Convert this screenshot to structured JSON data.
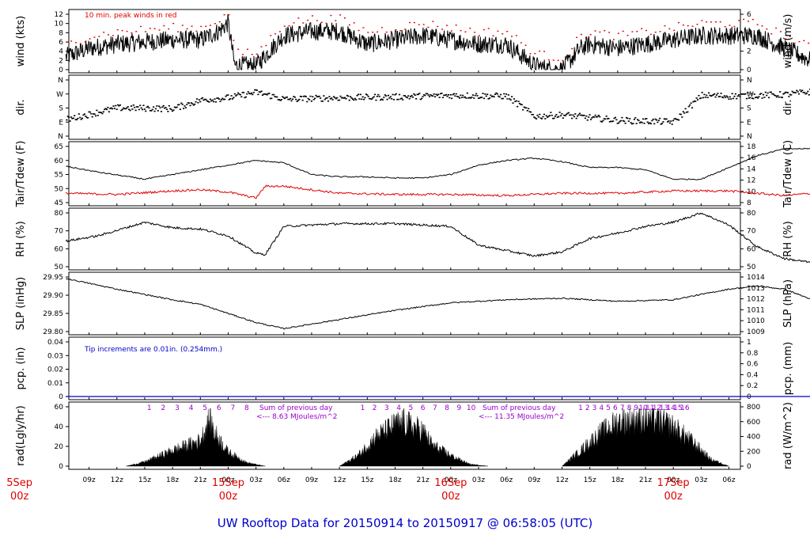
{
  "title": "UW Rooftop Data for 20150914  to  20150917 @ 06:58:05  (UTC)",
  "time_ticks": [
    "09z",
    "12z",
    "15z",
    "18z",
    "21z",
    "00z",
    "03z",
    "06z",
    "09z",
    "12z",
    "15z",
    "18z",
    "21z",
    "00z",
    "03z",
    "06z",
    "09z",
    "12z",
    "15z",
    "18z",
    "21z",
    "00z",
    "03z",
    "06z"
  ],
  "day_labels": [
    {
      "date": "5Sep",
      "hour": "00z",
      "tick": -2.5
    },
    {
      "date": "15Sep",
      "hour": "00z",
      "tick": 5
    },
    {
      "date": "16Sep",
      "hour": "00z",
      "tick": 13
    },
    {
      "date": "17Sep",
      "hour": "00z",
      "tick": 21
    }
  ],
  "panels": {
    "wind": {
      "ylabel_left": "wind (kts)",
      "ylabel_right": "wind (m/s)",
      "left_ticks": [
        "0",
        "2",
        "4",
        "6",
        "8",
        "10",
        "12"
      ],
      "right_ticks": [
        "0",
        "2",
        "4",
        "6"
      ],
      "note": "10 min. peak winds in red",
      "line_color": "#000000",
      "peak_color": "#e00000"
    },
    "dir": {
      "ylabel_left": "dir.",
      "ylabel_right": "dir.",
      "left_ticks": [
        "N",
        "E",
        "S",
        "W",
        "N"
      ],
      "right_ticks": [
        "N",
        "E",
        "S",
        "W",
        "N"
      ]
    },
    "temp": {
      "ylabel_left": "Tair/Tdew (F)",
      "ylabel_right": "Tair/Tdew (C)",
      "left_ticks": [
        "45",
        "50",
        "55",
        "60",
        "65"
      ],
      "right_ticks": [
        "8",
        "10",
        "12",
        "14",
        "16",
        "18"
      ],
      "tair_color": "#000000",
      "tdew_color": "#e00000"
    },
    "rh": {
      "ylabel_left": "RH (%)",
      "ylabel_right": "RH (%)",
      "left_ticks": [
        "50",
        "60",
        "70",
        "80"
      ],
      "right_ticks": [
        "50",
        "60",
        "70",
        "80"
      ]
    },
    "slp": {
      "ylabel_left": "SLP (inHg)",
      "ylabel_right": "SLP (hPa)",
      "left_ticks": [
        "29.80",
        "29.85",
        "29.90",
        "29.95"
      ],
      "right_ticks": [
        "1009",
        "1010",
        "1011",
        "1012",
        "1013",
        "1014"
      ]
    },
    "pcp": {
      "ylabel_left": "pcp. (in)",
      "ylabel_right": "pcp. (mm)",
      "left_ticks": [
        "0",
        "0.01",
        "0.02",
        "0.03",
        "0.04"
      ],
      "right_ticks": [
        "0",
        "0.2",
        "0.4",
        "0.6",
        "0.8",
        "1"
      ],
      "note": "Tip increments are 0.01in. (0.254mm.)",
      "line_color": "#0000cc"
    },
    "rad": {
      "ylabel_left": "rad(Lgly/hr)",
      "ylabel_right": "rad (W/m^2)",
      "left_ticks": [
        "0",
        "20",
        "40",
        "60"
      ],
      "right_ticks": [
        "0",
        "200",
        "400",
        "600",
        "800"
      ],
      "sum_day1_a": "Sum of previous day",
      "sum_day1_b": "<--- 8.63 MJoules/m^2",
      "sum_day2_a": "Sum of previous day",
      "sum_day2_b": "<--- 11.35 MJoules/m^2",
      "hour_marks_1": [
        "1",
        "2",
        "3",
        "4",
        "5",
        "6",
        "7",
        "8"
      ],
      "hour_marks_2": [
        "1",
        "2",
        "3",
        "4",
        "5",
        "6",
        "7",
        "8",
        "9",
        "10"
      ],
      "hour_marks_3": [
        "1",
        "2",
        "3",
        "4",
        "5",
        "6",
        "7",
        "8",
        "9",
        "10",
        "11",
        "12",
        "13",
        "14",
        "15",
        "16"
      ]
    }
  },
  "chart_data": [
    {
      "type": "line",
      "ylabel": "wind (kts)",
      "ylim": [
        0,
        13
      ],
      "x": [
        6.5,
        9,
        12,
        15,
        18,
        21,
        23,
        24,
        24.7,
        27,
        30,
        33,
        36,
        38,
        39,
        42,
        45,
        48,
        51,
        54,
        57,
        59,
        60,
        62,
        63,
        66,
        69,
        72,
        75,
        78,
        81,
        84,
        87,
        90,
        93,
        94.5
      ],
      "values": [
        3,
        5,
        6,
        6.5,
        7,
        7,
        9,
        11,
        1,
        1,
        8,
        9,
        9,
        7,
        6,
        7,
        8,
        7,
        6,
        6,
        1,
        0,
        0,
        5,
        6,
        5,
        6,
        7,
        8,
        8,
        8,
        5,
        2,
        1,
        5,
        2.5
      ]
    },
    {
      "type": "line",
      "ylabel": "dir. (deg)",
      "ylim": [
        0,
        360
      ],
      "x": [
        6.5,
        12,
        18,
        21,
        24,
        27,
        30,
        36,
        42,
        48,
        54,
        57,
        60,
        66,
        72,
        75,
        78,
        84,
        87,
        90,
        92,
        94.5
      ],
      "values": [
        110,
        185,
        180,
        235,
        250,
        285,
        240,
        250,
        255,
        265,
        260,
        130,
        140,
        105,
        95,
        265,
        260,
        270,
        290,
        40,
        240,
        290
      ]
    },
    {
      "type": "line",
      "ylabel": "Tair (F)",
      "ylim": [
        43,
        67
      ],
      "x": [
        6.5,
        10,
        15,
        18,
        21,
        24,
        27,
        30,
        33,
        36,
        39,
        42,
        45,
        48,
        51,
        54,
        57,
        60,
        63,
        66,
        69,
        72,
        75,
        78,
        81,
        84,
        87,
        90,
        93,
        94.5
      ],
      "values": [
        58.5,
        56,
        53,
        55,
        57,
        59,
        61,
        60,
        55,
        54,
        54,
        53.5,
        53.5,
        55,
        59,
        61,
        62,
        60.5,
        58,
        58,
        57,
        53,
        53,
        58,
        63,
        66,
        66,
        65,
        60,
        58
      ]
    },
    {
      "type": "line",
      "ylabel": "Tdew (F)",
      "ylim": [
        43,
        67
      ],
      "x": [
        6.5,
        12,
        18,
        21,
        24,
        27,
        28,
        30,
        36,
        42,
        48,
        54,
        60,
        66,
        72,
        75,
        78,
        81,
        84,
        87,
        90,
        93,
        94.5
      ],
      "values": [
        47,
        46.5,
        48,
        48.5,
        47.5,
        45,
        50,
        50,
        47,
        46.5,
        46.5,
        46,
        47,
        47,
        48,
        48,
        48,
        47,
        46,
        47,
        48,
        52,
        54
      ]
    },
    {
      "type": "line",
      "ylabel": "RH (%)",
      "ylim": [
        47,
        87
      ],
      "x": [
        6.5,
        10,
        15,
        18,
        21,
        24,
        27,
        28,
        30,
        36,
        42,
        48,
        51,
        54,
        57,
        60,
        63,
        66,
        69,
        72,
        75,
        78,
        81,
        84,
        87,
        90,
        92,
        94.5
      ],
      "values": [
        66,
        70,
        80,
        76,
        75,
        70,
        57,
        56,
        77,
        79,
        79,
        77,
        63,
        59,
        55,
        58,
        68,
        72,
        77,
        80,
        87,
        78,
        62,
        53,
        50,
        49,
        55,
        86
      ]
    },
    {
      "type": "line",
      "ylabel": "SLP (inHg)",
      "ylim": [
        29.78,
        29.96
      ],
      "x": [
        6.5,
        12,
        18,
        21,
        24,
        27,
        30,
        36,
        42,
        48,
        54,
        60,
        66,
        72,
        78,
        81,
        84,
        87,
        90,
        93,
        94.5
      ],
      "values": [
        29.955,
        29.92,
        29.885,
        29.87,
        29.84,
        29.81,
        29.79,
        29.82,
        29.85,
        29.875,
        29.885,
        29.89,
        29.88,
        29.885,
        29.92,
        29.93,
        29.92,
        29.885,
        29.88,
        29.89,
        29.9
      ]
    },
    {
      "type": "line",
      "ylabel": "pcp. (in)",
      "ylim": [
        0,
        0.04
      ],
      "x": [
        6.5,
        92.5,
        93,
        93.3,
        93.6,
        94,
        94.5
      ],
      "values": [
        0,
        0,
        0.01,
        0.02,
        0.03,
        0.04,
        0.04
      ]
    },
    {
      "type": "area",
      "ylabel": "rad(Lgly/hr)",
      "ylim": [
        0,
        72
      ],
      "x": [
        13,
        15,
        18,
        21,
        22,
        22.5,
        24,
        26,
        28,
        36,
        38,
        40,
        42,
        43,
        44,
        45,
        46,
        48,
        50,
        52,
        60,
        62,
        64,
        66,
        68,
        70,
        72,
        74,
        76,
        78
      ],
      "values": [
        0,
        6,
        22,
        36,
        66,
        48,
        20,
        5,
        0,
        0,
        15,
        42,
        58,
        62,
        55,
        50,
        30,
        15,
        3,
        0,
        0,
        22,
        45,
        62,
        68,
        66,
        55,
        35,
        10,
        0
      ]
    }
  ]
}
